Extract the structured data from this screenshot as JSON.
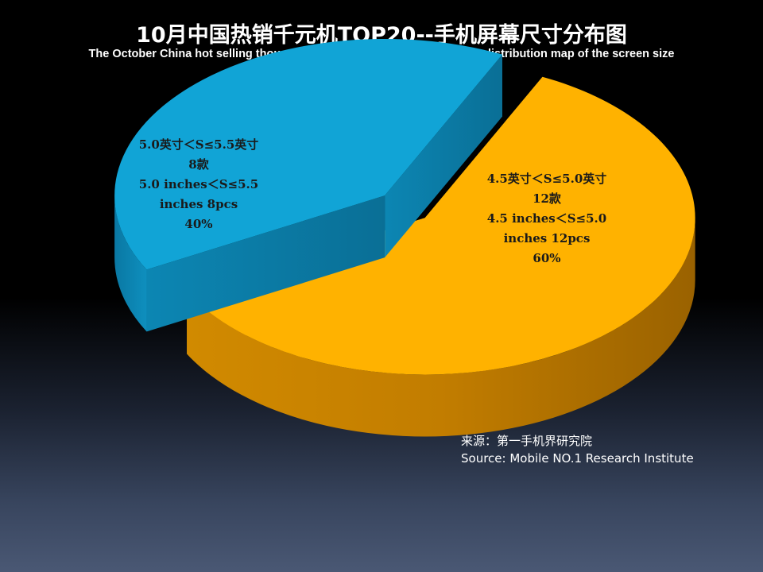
{
  "chart_data": {
    "type": "pie",
    "title": "10月中国热销千元机TOP20--手机屏幕尺寸分布图",
    "subtitle": "The October China hot selling thousand-yuan mobile phone TOP20--the distribution map of the screen size",
    "slices": [
      {
        "label_cn": "4.5英寸＜S≤5.0英寸",
        "count_cn": "12款",
        "label_en_1": "4.5 inches＜S≤5.0",
        "label_en_2": "inches 12pcs",
        "percent_label": "60%",
        "value": 60,
        "count": 12,
        "color": "#ffb200"
      },
      {
        "label_cn": "5.0英寸＜S≤5.5英寸",
        "count_cn": "8款",
        "label_en_1": "5.0 inches＜S≤5.5",
        "label_en_2": "inches 8pcs",
        "percent_label": "40%",
        "value": 40,
        "count": 8,
        "color": "#11a4d6"
      }
    ]
  },
  "source": {
    "line_cn": "来源：第一手机界研究院",
    "line_en": "Source: Mobile NO.1 Research Institute"
  }
}
